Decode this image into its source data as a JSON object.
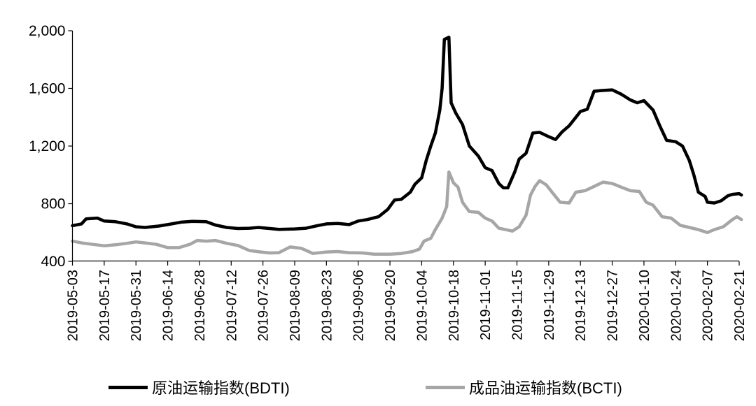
{
  "chart_data": {
    "type": "line",
    "title": "",
    "xlabel": "",
    "ylabel": "",
    "ylim": [
      400,
      2000
    ],
    "yticks": [
      "2,000",
      "1,600",
      "1,200",
      "800",
      "400"
    ],
    "ytick_values": [
      2000,
      1600,
      1200,
      800,
      400
    ],
    "xticks": [
      "2019-05-03",
      "2019-05-17",
      "2019-05-31",
      "2019-06-14",
      "2019-06-28",
      "2019-07-12",
      "2019-07-26",
      "2019-08-09",
      "2019-08-23",
      "2019-09-06",
      "2019-09-20",
      "2019-10-04",
      "2019-10-18",
      "2019-11-01",
      "2019-11-15",
      "2019-11-29",
      "2019-12-13",
      "2019-12-27",
      "2020-01-10",
      "2020-01-24",
      "2020-02-07",
      "2020-02-21"
    ],
    "xlim": [
      "2019-05-03",
      "2020-02-21"
    ],
    "grid": false,
    "legend_position": "bottom",
    "series": [
      {
        "name": "原油运输指数(BDTI)",
        "color": "#000000",
        "points": [
          [
            "2019-05-03",
            648
          ],
          [
            "2019-05-07",
            660
          ],
          [
            "2019-05-09",
            695
          ],
          [
            "2019-05-14",
            700
          ],
          [
            "2019-05-17",
            680
          ],
          [
            "2019-05-22",
            675
          ],
          [
            "2019-05-27",
            660
          ],
          [
            "2019-05-31",
            640
          ],
          [
            "2019-06-04",
            635
          ],
          [
            "2019-06-10",
            645
          ],
          [
            "2019-06-14",
            655
          ],
          [
            "2019-06-20",
            672
          ],
          [
            "2019-06-25",
            678
          ],
          [
            "2019-07-01",
            675
          ],
          [
            "2019-07-05",
            652
          ],
          [
            "2019-07-10",
            635
          ],
          [
            "2019-07-15",
            628
          ],
          [
            "2019-07-20",
            630
          ],
          [
            "2019-07-24",
            635
          ],
          [
            "2019-07-29",
            628
          ],
          [
            "2019-08-02",
            622
          ],
          [
            "2019-08-09",
            625
          ],
          [
            "2019-08-14",
            630
          ],
          [
            "2019-08-19",
            648
          ],
          [
            "2019-08-23",
            660
          ],
          [
            "2019-08-28",
            663
          ],
          [
            "2019-09-02",
            655
          ],
          [
            "2019-09-06",
            680
          ],
          [
            "2019-09-10",
            690
          ],
          [
            "2019-09-15",
            710
          ],
          [
            "2019-09-19",
            760
          ],
          [
            "2019-09-22",
            825
          ],
          [
            "2019-09-25",
            830
          ],
          [
            "2019-09-29",
            880
          ],
          [
            "2019-10-01",
            935
          ],
          [
            "2019-10-04",
            980
          ],
          [
            "2019-10-06",
            1100
          ],
          [
            "2019-10-08",
            1200
          ],
          [
            "2019-10-10",
            1290
          ],
          [
            "2019-10-12",
            1450
          ],
          [
            "2019-10-13",
            1600
          ],
          [
            "2019-10-14",
            1940
          ],
          [
            "2019-10-16",
            1955
          ],
          [
            "2019-10-17",
            1500
          ],
          [
            "2019-10-19",
            1430
          ],
          [
            "2019-10-22",
            1350
          ],
          [
            "2019-10-25",
            1200
          ],
          [
            "2019-10-29",
            1130
          ],
          [
            "2019-11-01",
            1050
          ],
          [
            "2019-11-04",
            1030
          ],
          [
            "2019-11-07",
            940
          ],
          [
            "2019-11-09",
            910
          ],
          [
            "2019-11-11",
            910
          ],
          [
            "2019-11-14",
            1020
          ],
          [
            "2019-11-16",
            1110
          ],
          [
            "2019-11-19",
            1150
          ],
          [
            "2019-11-22",
            1290
          ],
          [
            "2019-11-25",
            1295
          ],
          [
            "2019-11-29",
            1265
          ],
          [
            "2019-12-02",
            1245
          ],
          [
            "2019-12-05",
            1300
          ],
          [
            "2019-12-08",
            1340
          ],
          [
            "2019-12-11",
            1400
          ],
          [
            "2019-12-13",
            1440
          ],
          [
            "2019-12-16",
            1455
          ],
          [
            "2019-12-19",
            1580
          ],
          [
            "2019-12-22",
            1585
          ],
          [
            "2019-12-27",
            1590
          ],
          [
            "2019-12-31",
            1560
          ],
          [
            "2020-01-04",
            1520
          ],
          [
            "2020-01-07",
            1500
          ],
          [
            "2020-01-10",
            1515
          ],
          [
            "2020-01-14",
            1450
          ],
          [
            "2020-01-17",
            1340
          ],
          [
            "2020-01-20",
            1240
          ],
          [
            "2020-01-24",
            1230
          ],
          [
            "2020-01-27",
            1200
          ],
          [
            "2020-01-30",
            1100
          ],
          [
            "2020-02-01",
            1000
          ],
          [
            "2020-02-03",
            880
          ],
          [
            "2020-02-06",
            850
          ],
          [
            "2020-02-07",
            810
          ],
          [
            "2020-02-10",
            805
          ],
          [
            "2020-02-13",
            820
          ],
          [
            "2020-02-16",
            855
          ],
          [
            "2020-02-18",
            865
          ],
          [
            "2020-02-21",
            870
          ],
          [
            "2020-02-22",
            860
          ]
        ]
      },
      {
        "name": "成品油运输指数(BCTI)",
        "color": "#a6a6a6",
        "points": [
          [
            "2019-05-03",
            540
          ],
          [
            "2019-05-07",
            528
          ],
          [
            "2019-05-11",
            520
          ],
          [
            "2019-05-17",
            508
          ],
          [
            "2019-05-22",
            515
          ],
          [
            "2019-05-27",
            525
          ],
          [
            "2019-05-31",
            535
          ],
          [
            "2019-06-04",
            528
          ],
          [
            "2019-06-09",
            518
          ],
          [
            "2019-06-14",
            495
          ],
          [
            "2019-06-19",
            495
          ],
          [
            "2019-06-24",
            520
          ],
          [
            "2019-06-27",
            545
          ],
          [
            "2019-07-01",
            540
          ],
          [
            "2019-07-05",
            545
          ],
          [
            "2019-07-10",
            525
          ],
          [
            "2019-07-15",
            510
          ],
          [
            "2019-07-20",
            475
          ],
          [
            "2019-07-25",
            465
          ],
          [
            "2019-07-29",
            458
          ],
          [
            "2019-08-02",
            460
          ],
          [
            "2019-08-07",
            500
          ],
          [
            "2019-08-12",
            490
          ],
          [
            "2019-08-17",
            455
          ],
          [
            "2019-08-23",
            465
          ],
          [
            "2019-08-28",
            468
          ],
          [
            "2019-09-02",
            460
          ],
          [
            "2019-09-08",
            458
          ],
          [
            "2019-09-13",
            450
          ],
          [
            "2019-09-20",
            450
          ],
          [
            "2019-09-25",
            455
          ],
          [
            "2019-09-30",
            468
          ],
          [
            "2019-10-03",
            485
          ],
          [
            "2019-10-05",
            540
          ],
          [
            "2019-10-08",
            560
          ],
          [
            "2019-10-10",
            620
          ],
          [
            "2019-10-13",
            700
          ],
          [
            "2019-10-15",
            780
          ],
          [
            "2019-10-16",
            1020
          ],
          [
            "2019-10-18",
            945
          ],
          [
            "2019-10-20",
            915
          ],
          [
            "2019-10-22",
            810
          ],
          [
            "2019-10-25",
            745
          ],
          [
            "2019-10-29",
            740
          ],
          [
            "2019-11-01",
            700
          ],
          [
            "2019-11-04",
            680
          ],
          [
            "2019-11-07",
            630
          ],
          [
            "2019-11-10",
            620
          ],
          [
            "2019-11-13",
            610
          ],
          [
            "2019-11-16",
            640
          ],
          [
            "2019-11-19",
            720
          ],
          [
            "2019-11-21",
            860
          ],
          [
            "2019-11-23",
            920
          ],
          [
            "2019-11-25",
            960
          ],
          [
            "2019-11-28",
            930
          ],
          [
            "2019-12-01",
            870
          ],
          [
            "2019-12-04",
            810
          ],
          [
            "2019-12-08",
            805
          ],
          [
            "2019-12-11",
            880
          ],
          [
            "2019-12-15",
            890
          ],
          [
            "2019-12-19",
            920
          ],
          [
            "2019-12-23",
            950
          ],
          [
            "2019-12-27",
            940
          ],
          [
            "2019-12-31",
            915
          ],
          [
            "2020-01-04",
            890
          ],
          [
            "2020-01-08",
            885
          ],
          [
            "2020-01-11",
            810
          ],
          [
            "2020-01-14",
            790
          ],
          [
            "2020-01-18",
            710
          ],
          [
            "2020-01-22",
            700
          ],
          [
            "2020-01-26",
            650
          ],
          [
            "2020-01-30",
            635
          ],
          [
            "2020-02-03",
            620
          ],
          [
            "2020-02-07",
            600
          ],
          [
            "2020-02-10",
            620
          ],
          [
            "2020-02-14",
            640
          ],
          [
            "2020-02-18",
            690
          ],
          [
            "2020-02-20",
            710
          ],
          [
            "2020-02-22",
            690
          ]
        ]
      }
    ]
  }
}
